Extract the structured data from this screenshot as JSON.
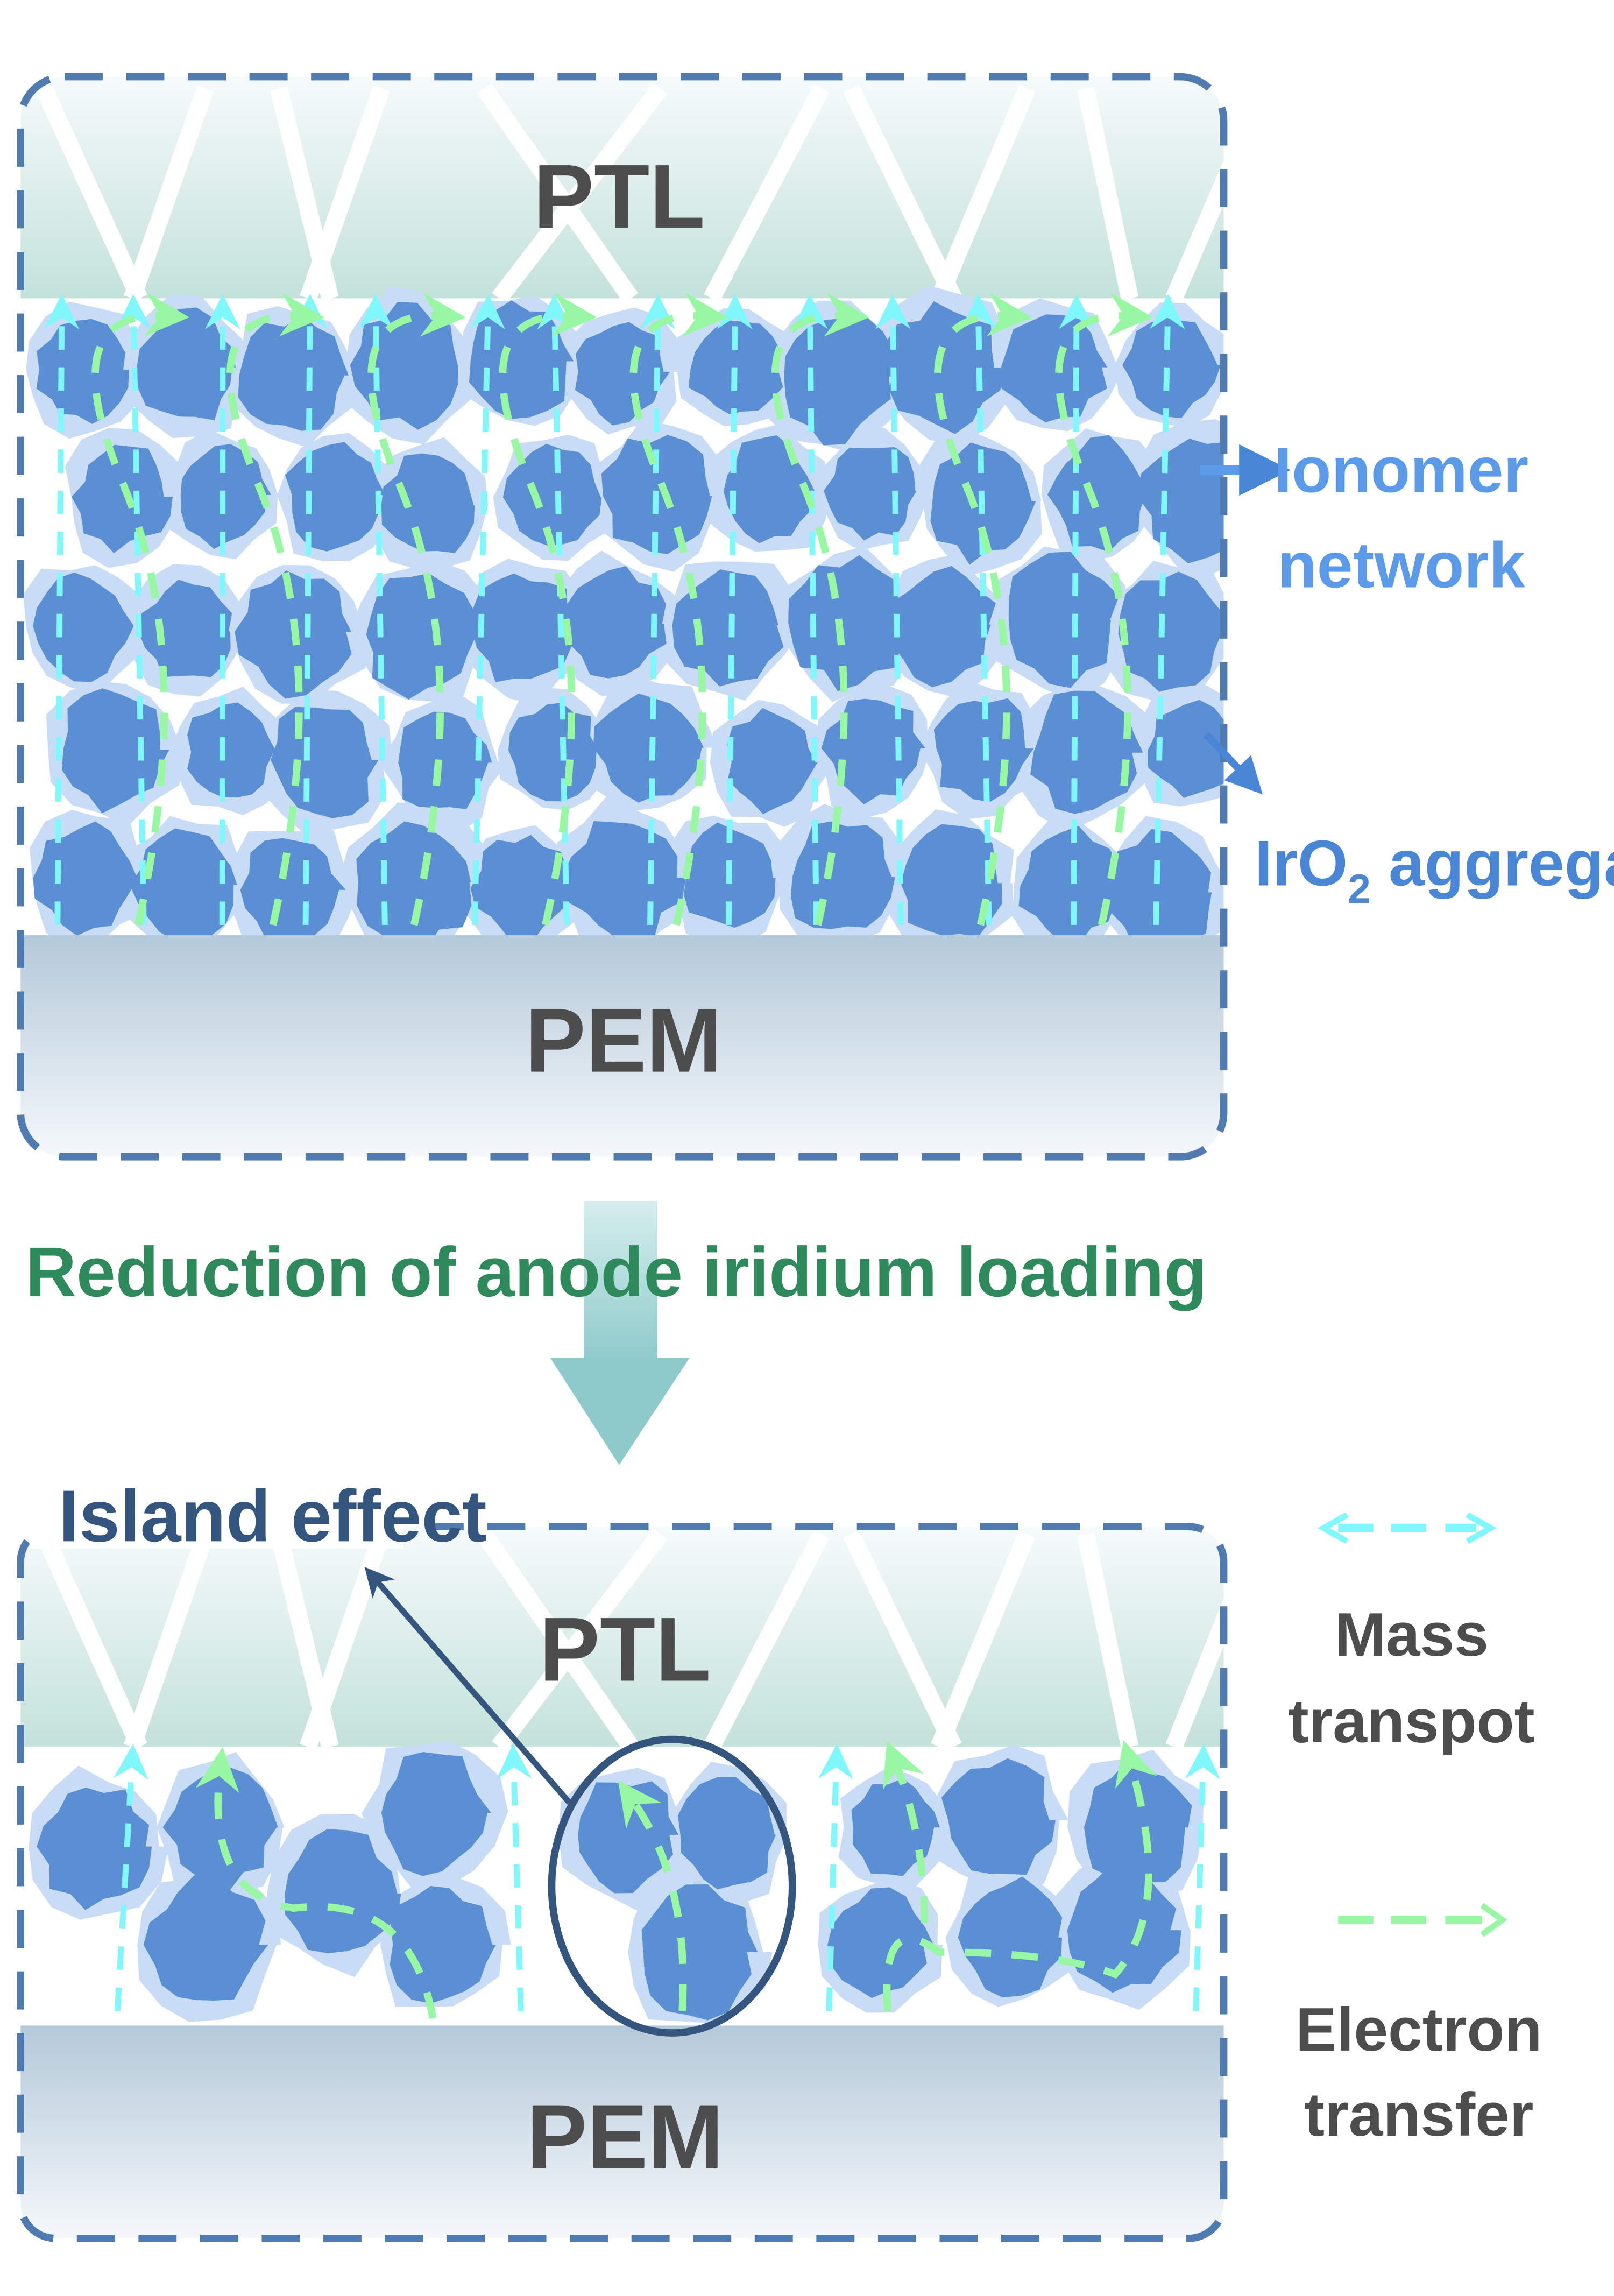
{
  "top_panel": {
    "ptl_label": "PTL",
    "pem_label": "PEM",
    "ionomer_label_line1": "Ionomer",
    "ionomer_label_line2": "network",
    "iro2_label_main": "IrO",
    "iro2_label_sub": "2",
    "iro2_label_rest": " aggregate"
  },
  "transition": {
    "label": "Reduction of anode iridium loading"
  },
  "bottom_panel": {
    "ptl_label": "PTL",
    "pem_label": "PEM",
    "island_label": "Island effect"
  },
  "legend": {
    "mass_line1": "Mass",
    "mass_line2": "transpot",
    "electron_line1": "Electron",
    "electron_line2": "transfer"
  },
  "colors": {
    "border": "#4f7bb0",
    "aggregate": "#5b8fd4",
    "ionomer": "#c9dcf5",
    "mass_transport": "#7ff7fb",
    "electron_transfer": "#98f7a2",
    "label_blue": "#5a9ae8",
    "label_green": "#2e8a5a",
    "text_dark": "#4d4d4d"
  }
}
